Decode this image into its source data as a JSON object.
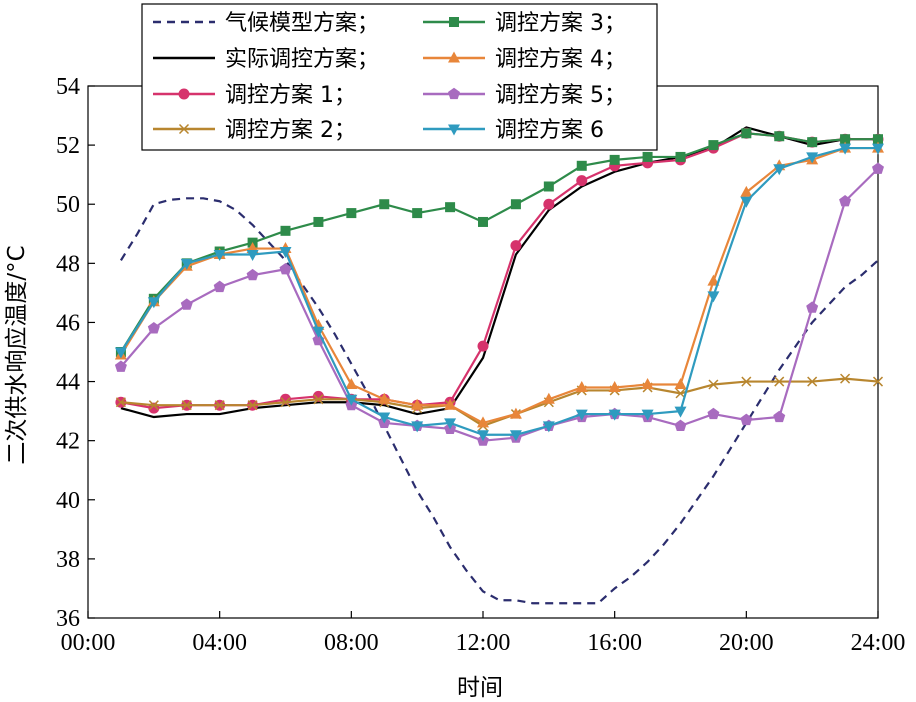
{
  "chart_data": {
    "type": "line",
    "xlabel": "时间",
    "ylabel": "二次供水响应温度/°C",
    "xlim": [
      0,
      24
    ],
    "ylim": [
      36,
      54
    ],
    "x_ticks": [
      0,
      4,
      8,
      12,
      16,
      20,
      24
    ],
    "x_tick_labels": [
      "00:00",
      "04:00",
      "08:00",
      "12:00",
      "16:00",
      "20:00",
      "24:00"
    ],
    "y_ticks": [
      36,
      38,
      40,
      42,
      44,
      46,
      48,
      50,
      52,
      54
    ],
    "y_tick_labels": [
      "36",
      "38",
      "40",
      "42",
      "44",
      "46",
      "48",
      "50",
      "52",
      "54"
    ],
    "grid": false,
    "legend_position": "top-left",
    "series": [
      {
        "name": "气候模型方案；",
        "color": "#2b2d6e",
        "dash": true,
        "marker": "none",
        "x": [
          1,
          2,
          3,
          4,
          5,
          6,
          7,
          8,
          9,
          10,
          11,
          12,
          13,
          14,
          15,
          16,
          17,
          18,
          19,
          20,
          21,
          22,
          23,
          24
        ],
        "y": [
          48.1,
          50.0,
          50.2,
          50.1,
          49.3,
          48.1,
          46.5,
          44.6,
          42.5,
          40.3,
          38.4,
          36.9,
          36.6,
          36.5,
          36.5,
          37.0,
          37.9,
          39.2,
          40.8,
          42.6,
          44.4,
          46.0,
          47.2,
          48.1
        ],
        "x_dense": [
          1,
          1.5,
          2,
          2.5,
          3,
          3.5,
          4,
          4.5,
          5,
          5.5,
          6,
          6.5,
          7,
          7.5,
          8,
          8.5,
          9,
          9.5,
          10,
          10.5,
          11,
          11.5,
          12,
          12.5,
          13,
          13.5,
          14,
          14.5,
          15,
          15.5,
          16,
          16.5,
          17,
          17.5,
          18,
          18.5,
          19,
          19.5,
          20,
          20.5,
          21,
          21.5,
          22,
          22.5,
          23,
          23.5,
          24
        ],
        "y_dense": [
          48.1,
          49.0,
          50.0,
          50.15,
          50.2,
          50.2,
          50.1,
          49.8,
          49.3,
          48.7,
          48.1,
          47.3,
          46.5,
          45.6,
          44.6,
          43.6,
          42.5,
          41.4,
          40.3,
          39.4,
          38.4,
          37.6,
          36.9,
          36.6,
          36.6,
          36.5,
          36.5,
          36.5,
          36.5,
          36.5,
          37.0,
          37.4,
          37.9,
          38.5,
          39.2,
          40.0,
          40.8,
          41.7,
          42.6,
          43.5,
          44.4,
          45.2,
          46.0,
          46.6,
          47.2,
          47.6,
          48.1
        ]
      },
      {
        "name": "实际调控方案；",
        "color": "#000000",
        "dash": false,
        "marker": "none",
        "x": [
          1,
          2,
          3,
          4,
          5,
          6,
          7,
          8,
          9,
          10,
          11,
          12,
          13,
          14,
          15,
          16,
          17,
          18,
          19,
          20,
          21,
          22,
          23,
          24
        ],
        "y": [
          43.1,
          42.8,
          42.9,
          42.9,
          43.1,
          43.2,
          43.3,
          43.3,
          43.2,
          42.9,
          43.1,
          44.8,
          48.3,
          49.8,
          50.6,
          51.1,
          51.4,
          51.6,
          51.9,
          52.6,
          52.3,
          52.0,
          52.2,
          52.2
        ]
      },
      {
        "name": "调控方案 1；",
        "color": "#d6336c",
        "dash": false,
        "marker": "circle",
        "x": [
          1,
          2,
          3,
          4,
          5,
          6,
          7,
          8,
          9,
          10,
          11,
          12,
          13,
          14,
          15,
          16,
          17,
          18,
          19,
          20,
          21,
          22,
          23,
          24
        ],
        "y": [
          43.3,
          43.1,
          43.2,
          43.2,
          43.2,
          43.4,
          43.5,
          43.4,
          43.4,
          43.2,
          43.3,
          45.2,
          48.6,
          50.0,
          50.8,
          51.3,
          51.4,
          51.5,
          51.9,
          52.4,
          52.3,
          52.1,
          52.2,
          52.2
        ]
      },
      {
        "name": "调控方案 2；",
        "color": "#b8862f",
        "dash": false,
        "marker": "x",
        "x": [
          1,
          2,
          3,
          4,
          5,
          6,
          7,
          8,
          9,
          10,
          11,
          12,
          13,
          14,
          15,
          16,
          17,
          18,
          19,
          20,
          21,
          22,
          23,
          24
        ],
        "y": [
          43.3,
          43.2,
          43.2,
          43.2,
          43.2,
          43.3,
          43.4,
          43.4,
          43.3,
          43.1,
          43.2,
          42.5,
          42.9,
          43.3,
          43.7,
          43.7,
          43.8,
          43.6,
          43.9,
          44.0,
          44.0,
          44.0,
          44.1,
          44.0
        ]
      },
      {
        "name": "调控方案 3；",
        "color": "#2e8b4a",
        "dash": false,
        "marker": "square",
        "x": [
          1,
          2,
          3,
          4,
          5,
          6,
          7,
          8,
          9,
          10,
          11,
          12,
          13,
          14,
          15,
          16,
          17,
          18,
          19,
          20,
          21,
          22,
          23,
          24
        ],
        "y": [
          45.0,
          46.8,
          48.0,
          48.4,
          48.7,
          49.1,
          49.4,
          49.7,
          50.0,
          49.7,
          49.9,
          49.4,
          50.0,
          50.6,
          51.3,
          51.5,
          51.6,
          51.6,
          52.0,
          52.4,
          52.3,
          52.1,
          52.2,
          52.2
        ]
      },
      {
        "name": "调控方案 4；",
        "color": "#e8863a",
        "dash": false,
        "marker": "triangle-up",
        "x": [
          1,
          2,
          3,
          4,
          5,
          6,
          7,
          8,
          9,
          10,
          11,
          12,
          13,
          14,
          15,
          16,
          17,
          18,
          19,
          20,
          21,
          22,
          23,
          24
        ],
        "y": [
          44.9,
          46.7,
          47.9,
          48.3,
          48.5,
          48.5,
          45.9,
          43.9,
          43.4,
          43.2,
          43.2,
          42.6,
          42.9,
          43.4,
          43.8,
          43.8,
          43.9,
          43.9,
          47.4,
          50.4,
          51.3,
          51.5,
          51.9,
          51.9
        ]
      },
      {
        "name": "调控方案 5；",
        "color": "#a86bbf",
        "dash": false,
        "marker": "pentagon",
        "x": [
          1,
          2,
          3,
          4,
          5,
          6,
          7,
          8,
          9,
          10,
          11,
          12,
          13,
          14,
          15,
          16,
          17,
          18,
          19,
          20,
          21,
          22,
          23,
          24
        ],
        "y": [
          44.5,
          45.8,
          46.6,
          47.2,
          47.6,
          47.8,
          45.4,
          43.2,
          42.6,
          42.5,
          42.4,
          42.0,
          42.1,
          42.5,
          42.8,
          42.9,
          42.8,
          42.5,
          42.9,
          42.7,
          42.8,
          46.5,
          50.1,
          51.2
        ]
      },
      {
        "name": "调控方案 6",
        "color": "#2f9bbf",
        "dash": false,
        "marker": "triangle-down",
        "x": [
          1,
          2,
          3,
          4,
          5,
          6,
          7,
          8,
          9,
          10,
          11,
          12,
          13,
          14,
          15,
          16,
          17,
          18,
          19,
          20,
          21,
          22,
          23,
          24
        ],
        "y": [
          45.0,
          46.7,
          48.0,
          48.3,
          48.3,
          48.4,
          45.7,
          43.4,
          42.8,
          42.5,
          42.6,
          42.2,
          42.2,
          42.5,
          42.9,
          42.9,
          42.9,
          43.0,
          46.9,
          50.1,
          51.2,
          51.6,
          51.9,
          51.9
        ]
      }
    ]
  }
}
